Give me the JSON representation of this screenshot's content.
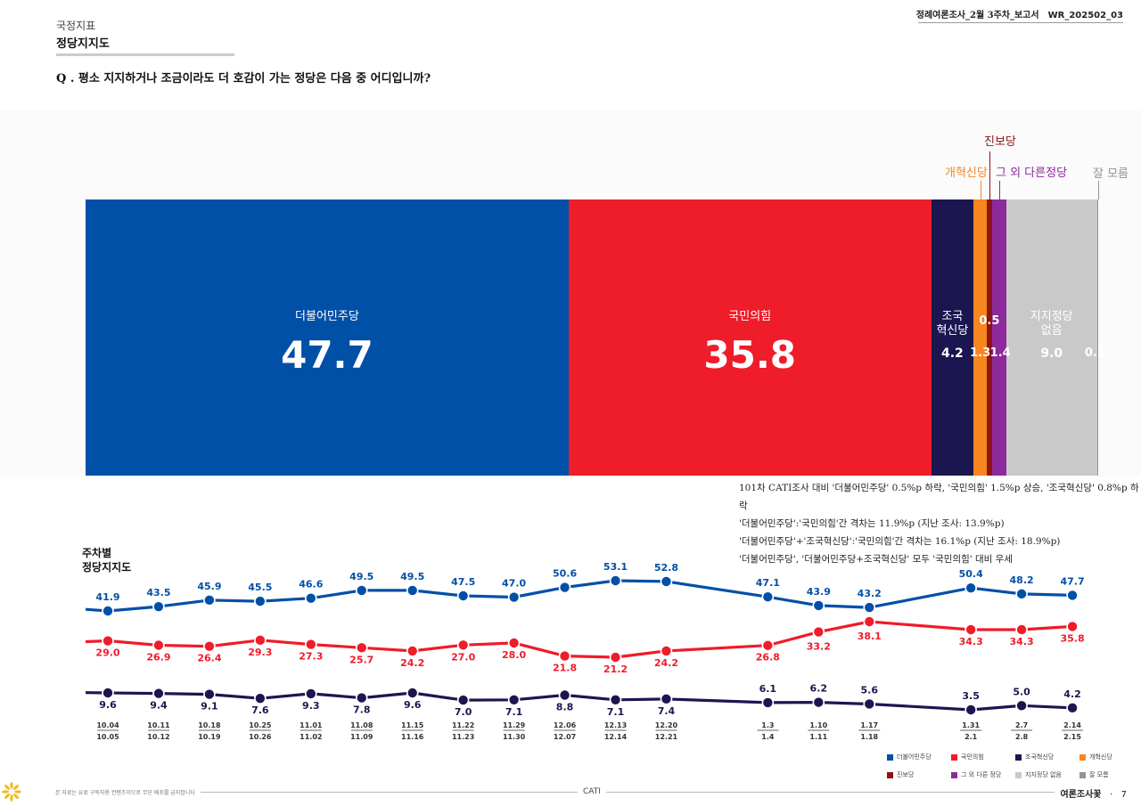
{
  "header": {
    "category": "국정지표",
    "title": "정당지지도",
    "question": "Q . 평소 지지하거나 조금이라도 더 호감이 가는 정당은 다음 중 어디입니까?",
    "report_title": "정례여론조사_2월 3주차_보고서",
    "report_code": "WR_202502_03"
  },
  "colors": {
    "democratic": "#0050a8",
    "ppp": "#ef1c2a",
    "rebuilding": "#1c1650",
    "reform": "#f7861f",
    "progressive": "#8c1414",
    "other": "#8d2a9c",
    "none": "#c9c9c9",
    "dontknow": "#9a938c"
  },
  "chart_data": [
    {
      "type": "stacked-bar",
      "title": "정당지지도",
      "segments": [
        {
          "key": "democratic",
          "name": "더불어민주당",
          "value": 47.7,
          "value_label": "47.7",
          "inner_label": "더불어민주당"
        },
        {
          "key": "ppp",
          "name": "국민의힘",
          "value": 35.8,
          "value_label": "35.8",
          "inner_label": "국민의힘"
        },
        {
          "key": "rebuilding",
          "name": "조국혁신당",
          "value": 4.2,
          "value_label": "4.2",
          "inner_label_lines": [
            "조국",
            "혁신당"
          ]
        },
        {
          "key": "reform",
          "name": "개혁신당",
          "value": 1.3,
          "value_label": "1.3",
          "top_label": "개혁신당"
        },
        {
          "key": "progressive",
          "name": "진보당",
          "value": 0.5,
          "value_label": "0.5",
          "top_label": "진보당"
        },
        {
          "key": "other",
          "name": "그 외 다른 정당",
          "value": 1.4,
          "value_label": "1.4",
          "top_label": "그 외 다른정당"
        },
        {
          "key": "none",
          "name": "지지정당 없음",
          "value": 9.0,
          "value_label": "9.0",
          "inner_label_lines": [
            "지지정당",
            "없음"
          ]
        },
        {
          "key": "dontknow",
          "name": "잘 모름",
          "value": 0.1,
          "value_label": "0.1",
          "top_label": "잘 모름"
        }
      ]
    },
    {
      "type": "line",
      "title": "주차별 정당지지도",
      "title_lines": [
        "주차별",
        "정당지지도"
      ],
      "x_labels": [
        [
          "10.04",
          "10.05"
        ],
        [
          "10.11",
          "10.12"
        ],
        [
          "10.18",
          "10.19"
        ],
        [
          "10.25",
          "10.26"
        ],
        [
          "11.01",
          "11.02"
        ],
        [
          "11.08",
          "11.09"
        ],
        [
          "11.15",
          "11.16"
        ],
        [
          "11.22",
          "11.23"
        ],
        [
          "11.29",
          "11.30"
        ],
        [
          "12.06",
          "12.07"
        ],
        [
          "12.13",
          "12.14"
        ],
        [
          "12.20",
          "12.21"
        ],
        [
          "1.3",
          "1.4"
        ],
        [
          "1.10",
          "1.11"
        ],
        [
          "1.17",
          "1.18"
        ],
        [
          "1.31",
          "2.1"
        ],
        [
          "2.7",
          "2.8"
        ],
        [
          "2.14",
          "2.15"
        ]
      ],
      "x_index": [
        0,
        1,
        2,
        3,
        4,
        5,
        6,
        7,
        8,
        9,
        10,
        11,
        13,
        14,
        15,
        17,
        18,
        19
      ],
      "ylim": [
        0,
        60
      ],
      "series": [
        {
          "key": "democratic",
          "name": "더불어민주당",
          "start_value": 42.5,
          "values": [
            41.9,
            43.5,
            45.9,
            45.5,
            46.6,
            49.5,
            49.5,
            47.5,
            47.0,
            50.6,
            53.1,
            52.8,
            47.1,
            43.9,
            43.2,
            50.4,
            48.2,
            47.7
          ],
          "labels": [
            "41.9",
            "43.5",
            "45.9",
            "45.5",
            "46.6",
            "49.5",
            "49.5",
            "47.5",
            "47.0",
            "50.6",
            "53.1",
            "52.8",
            "47.1",
            "43.9",
            "43.2",
            "50.4",
            "48.2",
            "47.7"
          ]
        },
        {
          "key": "ppp",
          "name": "국민의힘",
          "start_value": 28.6,
          "values": [
            29.0,
            26.9,
            26.4,
            29.3,
            27.3,
            25.7,
            24.2,
            27.0,
            28.0,
            21.8,
            21.2,
            24.2,
            26.8,
            33.2,
            38.1,
            34.3,
            34.3,
            35.8
          ],
          "labels": [
            "29.0",
            "26.9",
            "26.4",
            "29.3",
            "27.3",
            "25.7",
            "24.2",
            "27.0",
            "28.0",
            "21.8",
            "21.2",
            "24.2",
            "26.8",
            "33.2",
            "38.1",
            "34.3",
            "34.3",
            "35.8"
          ]
        },
        {
          "key": "rebuilding",
          "name": "조국혁신당",
          "start_value": 9.7,
          "values": [
            9.6,
            9.4,
            9.1,
            7.6,
            9.3,
            7.8,
            9.6,
            7.0,
            7.1,
            8.8,
            7.1,
            7.4,
            6.1,
            6.2,
            5.6,
            3.5,
            5.0,
            4.2
          ],
          "labels": [
            "9.6",
            "9.4",
            "9.1",
            "7.6",
            "9.3",
            "7.8",
            "9.6",
            "7.0",
            "7.1",
            "8.8",
            "7.1",
            "7.4",
            "6.1",
            "6.2",
            "5.6",
            "3.5",
            "5.0",
            "4.2"
          ]
        }
      ]
    }
  ],
  "notes": [
    "101차 CATI조사 대비 '더불어민주당' 0.5%p 하락, '국민의힘' 1.5%p 상승, '조국혁신당' 0.8%p 하락",
    "'더불어민주당':'국민의힘'간 격차는 11.9%p (지난 조사: 13.9%p)",
    "'더불어민주당'+'조국혁신당':'국민의힘'간 격차는 16.1%p (지난 조사: 18.9%p)",
    "'더불어민주당', '더불어민주당+조국혁신당' 모두 '국민의힘' 대비 우세"
  ],
  "legend": [
    {
      "key": "democratic",
      "label": "더불어민주당"
    },
    {
      "key": "ppp",
      "label": "국민의힘"
    },
    {
      "key": "rebuilding",
      "label": "조국혁신당"
    },
    {
      "key": "reform",
      "label": "개혁신당"
    },
    {
      "key": "progressive",
      "label": "진보당"
    },
    {
      "key": "other",
      "label": "그 외 다른 정당"
    },
    {
      "key": "none",
      "label": "지지정당 없음"
    },
    {
      "key": "dontknow",
      "label": "잘 모름"
    }
  ],
  "footer": {
    "disclaimer": "본 자료는 유료 구독자용 컨텐츠이므로 무단 배포를 금지합니다",
    "method": "CATI",
    "brand": "여론조사꽃",
    "page": "7"
  }
}
